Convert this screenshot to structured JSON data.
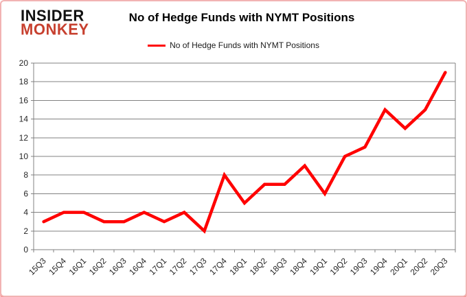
{
  "header": {
    "logo_line1": "INSIDER",
    "logo_line2": "MONKEY",
    "title": "No of Hedge Funds with NYMT Positions"
  },
  "legend": {
    "label": "No of Hedge Funds with NYMT Positions"
  },
  "colors": {
    "line": "#ff0000",
    "grid": "#808080",
    "axis": "#808080",
    "logo_black": "#111111",
    "logo_red": "#c7402f",
    "frame_border": "#f2b3b3",
    "text": "#262626"
  },
  "chart_data": {
    "type": "line",
    "title": "No of Hedge Funds with NYMT Positions",
    "series_name": "No of Hedge Funds with NYMT Positions",
    "categories": [
      "15Q3",
      "15Q4",
      "16Q1",
      "16Q2",
      "16Q3",
      "16Q4",
      "17Q1",
      "17Q2",
      "17Q3",
      "17Q4",
      "18Q1",
      "18Q2",
      "18Q3",
      "18Q4",
      "19Q1",
      "19Q2",
      "19Q3",
      "19Q4",
      "20Q1",
      "20Q2",
      "20Q3"
    ],
    "values": [
      3,
      4,
      4,
      3,
      3,
      4,
      3,
      4,
      2,
      8,
      5,
      7,
      7,
      9,
      6,
      10,
      11,
      15,
      13,
      15,
      19
    ],
    "ylim": [
      0,
      20
    ],
    "ytick_step": 2,
    "grid": "horizontal",
    "legend_position": "top-center",
    "x_label_rotation": -45
  }
}
